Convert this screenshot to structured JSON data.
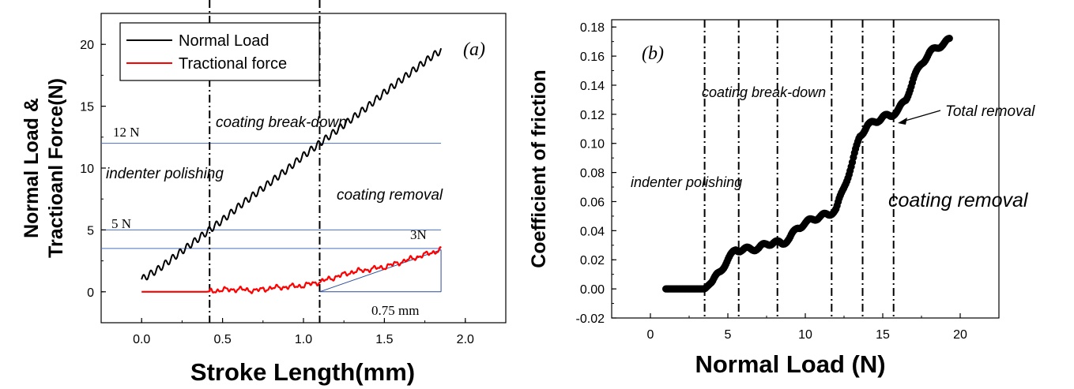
{
  "chart_data": [
    {
      "type": "line",
      "panel_label": "(a)",
      "xlabel": "Stroke Length(mm)",
      "ylabel_lines": [
        "Normal Load &",
        "Tractioanl Force(N)"
      ],
      "xlim": [
        -0.25,
        2.25
      ],
      "ylim": [
        -2.5,
        22.5
      ],
      "x_ticks": [
        "0.0",
        "0.5",
        "1.0",
        "1.5",
        "2.0"
      ],
      "x_tick_values": [
        0.0,
        0.5,
        1.0,
        1.5,
        2.0
      ],
      "y_ticks": [
        "0",
        "5",
        "10",
        "15",
        "20"
      ],
      "y_tick_values": [
        0,
        5,
        10,
        15,
        20
      ],
      "legend_position": "top-left",
      "series": [
        {
          "name": "Normal Load",
          "color": "#000000",
          "x": [
            0.0,
            0.1,
            0.2,
            0.3,
            0.4,
            0.5,
            0.6,
            0.7,
            0.8,
            0.9,
            1.0,
            1.1,
            1.2,
            1.3,
            1.4,
            1.5,
            1.6,
            1.7,
            1.8,
            1.85
          ],
          "y": [
            1.0,
            1.8,
            2.8,
            3.8,
            4.8,
            5.8,
            6.9,
            7.9,
            8.9,
            9.9,
            11.0,
            12.0,
            13.0,
            14.0,
            15.0,
            16.1,
            17.1,
            18.1,
            19.1,
            19.5
          ]
        },
        {
          "name": "Tractional force",
          "color": "#ff0000",
          "x": [
            0.0,
            0.1,
            0.2,
            0.3,
            0.4,
            0.5,
            0.6,
            0.7,
            0.8,
            0.9,
            1.0,
            1.1,
            1.2,
            1.3,
            1.4,
            1.5,
            1.6,
            1.7,
            1.8,
            1.85
          ],
          "y": [
            0.0,
            0.0,
            0.0,
            0.0,
            0.0,
            0.15,
            0.2,
            0.1,
            0.3,
            0.4,
            0.5,
            0.8,
            1.2,
            1.6,
            1.8,
            2.0,
            2.4,
            2.8,
            3.2,
            3.4
          ]
        }
      ],
      "vlines": [
        0.42,
        1.1
      ],
      "hlines": [
        {
          "y": 12,
          "label": "12 N"
        },
        {
          "y": 5,
          "label": "5 N"
        },
        {
          "y": 3.5,
          "label": "3N"
        }
      ],
      "slope_annotation": {
        "x_start": 1.1,
        "x_end": 1.85,
        "y_start": 0.0,
        "y_end": 3.4,
        "label": "0.75 mm"
      },
      "annotations": [
        "coating break-down",
        "indenter polishing",
        "coating removal"
      ]
    },
    {
      "type": "scatter",
      "panel_label": "(b)",
      "xlabel": "Normal Load (N)",
      "ylabel": "Coefficient of friction",
      "xlim": [
        -2.5,
        22.5
      ],
      "ylim": [
        -0.02,
        0.185
      ],
      "x_ticks": [
        "0",
        "5",
        "10",
        "15",
        "20"
      ],
      "x_tick_values": [
        0,
        5,
        10,
        15,
        20
      ],
      "y_ticks": [
        "-0.02",
        "0.00",
        "0.02",
        "0.04",
        "0.06",
        "0.08",
        "0.10",
        "0.12",
        "0.14",
        "0.16",
        "0.18"
      ],
      "y_tick_values": [
        -0.02,
        0.0,
        0.02,
        0.04,
        0.06,
        0.08,
        0.1,
        0.12,
        0.14,
        0.16,
        0.18
      ],
      "series": [
        {
          "x": [
            1.0,
            2.0,
            3.0,
            3.5,
            4.0,
            4.5,
            5.0,
            5.5,
            6.0,
            7.0,
            7.5,
            8.0,
            8.5,
            9.0,
            9.5,
            10.0,
            10.5,
            11.0,
            11.5,
            12.0,
            12.5,
            13.0,
            13.5,
            14.0,
            14.5,
            15.0,
            15.5,
            16.0,
            16.5,
            17.0,
            17.5,
            18.0,
            18.5,
            19.0,
            19.3
          ],
          "y": [
            0.0,
            0.0,
            0.0,
            0.0,
            0.005,
            0.012,
            0.02,
            0.027,
            0.027,
            0.028,
            0.031,
            0.032,
            0.031,
            0.035,
            0.042,
            0.045,
            0.048,
            0.05,
            0.051,
            0.055,
            0.07,
            0.085,
            0.105,
            0.112,
            0.115,
            0.118,
            0.119,
            0.123,
            0.13,
            0.145,
            0.155,
            0.162,
            0.166,
            0.169,
            0.171
          ]
        }
      ],
      "vlines": [
        3.5,
        5.7,
        8.2,
        11.7,
        13.7,
        15.7
      ],
      "annotations": [
        "coating break-down",
        "Total  removal",
        "indenter polishing",
        "coating removal"
      ]
    }
  ]
}
